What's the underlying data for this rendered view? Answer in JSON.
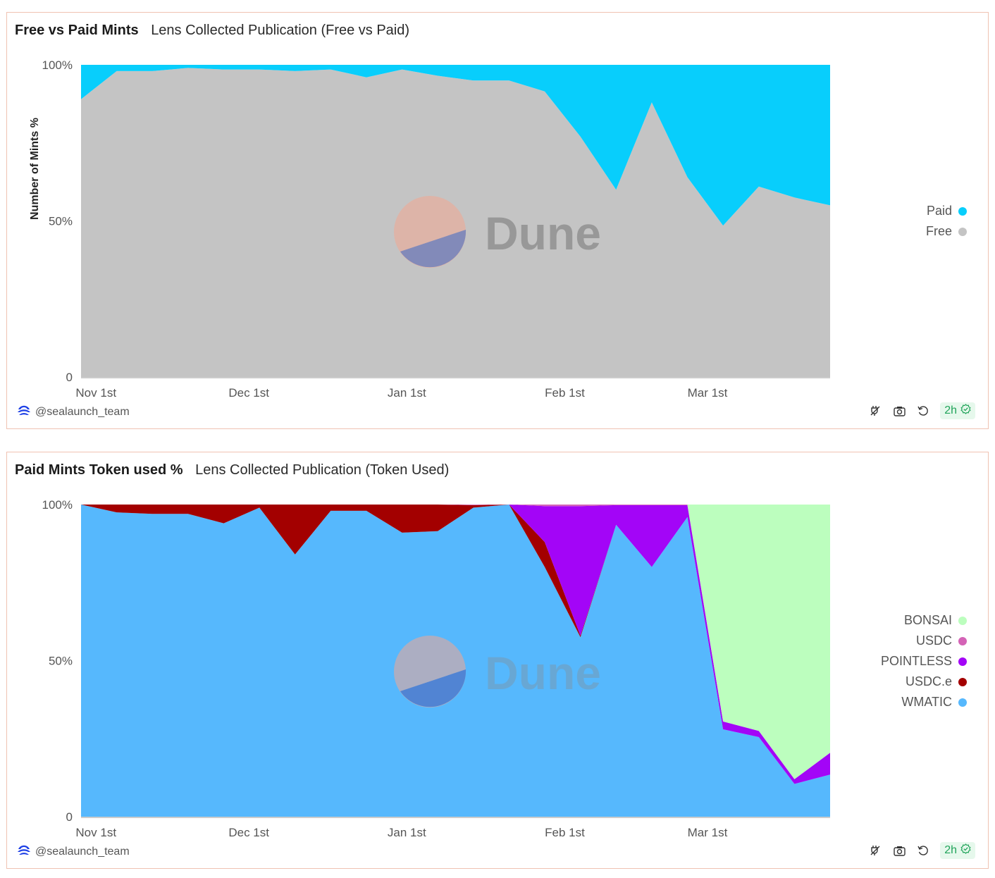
{
  "dashboard": {
    "author": "@sealaunch_team",
    "refresh_badge": "2h"
  },
  "watermark": {
    "text": "Dune"
  },
  "charts": [
    {
      "title": "Free vs Paid Mints",
      "subtitle": "Lens Collected Publication (Free vs Paid)",
      "ylabel": "Number of Mints %",
      "y_ticks": [
        "100%",
        "50%",
        "0"
      ],
      "x_ticks": [
        "Nov 1st",
        "Dec 1st",
        "Jan 1st",
        "Feb 1st",
        "Mar 1st"
      ],
      "legend": [
        {
          "name": "Paid",
          "color": "#08cefc"
        },
        {
          "name": "Free",
          "color": "#c4c4c4"
        }
      ]
    },
    {
      "title": "Paid Mints Token used %",
      "subtitle": "Lens Collected Publication (Token Used)",
      "ylabel": "",
      "y_ticks": [
        "100%",
        "50%",
        "0"
      ],
      "x_ticks": [
        "Nov 1st",
        "Dec 1st",
        "Jan 1st",
        "Feb 1st",
        "Mar 1st"
      ],
      "legend": [
        {
          "name": "BONSAI",
          "color": "#bcfebe"
        },
        {
          "name": "USDC",
          "color": "#d463b6"
        },
        {
          "name": "POINTLESS",
          "color": "#a305f7"
        },
        {
          "name": "USDC.e",
          "color": "#a30000"
        },
        {
          "name": "WMATIC",
          "color": "#56b8fd"
        }
      ]
    }
  ],
  "chart_data": [
    {
      "type": "area",
      "stacked": "percent",
      "x": [
        "2022-10-31",
        "2022-11-07",
        "2022-11-14",
        "2022-11-21",
        "2022-11-28",
        "2022-12-05",
        "2022-12-12",
        "2022-12-19",
        "2022-12-26",
        "2023-01-02",
        "2023-01-09",
        "2023-01-16",
        "2023-01-23",
        "2023-01-30",
        "2023-02-06",
        "2023-02-13",
        "2023-02-20",
        "2023-02-27",
        "2023-03-06",
        "2023-03-13",
        "2023-03-20",
        "2023-03-27"
      ],
      "x_range": [
        "2022-10-31",
        "2023-03-27"
      ],
      "ylim": [
        0,
        100
      ],
      "grid": false,
      "legend_position": "right",
      "series": [
        {
          "name": "Free",
          "color": "#c4c4c4",
          "values": [
            89,
            98,
            98,
            99,
            98.5,
            98.5,
            98,
            98.5,
            96,
            98.5,
            96.5,
            95,
            95,
            91.5,
            77,
            60,
            88,
            64,
            48.5,
            61,
            57.5,
            55
          ]
        },
        {
          "name": "Paid",
          "color": "#08cefc",
          "values": [
            11,
            2,
            2,
            1,
            1.5,
            1.5,
            2,
            1.5,
            4,
            1.5,
            3.5,
            5,
            5,
            8.5,
            23,
            40,
            12,
            36,
            51.5,
            39,
            42.5,
            45
          ]
        }
      ]
    },
    {
      "type": "area",
      "stacked": "percent",
      "x": [
        "2022-10-31",
        "2022-11-07",
        "2022-11-14",
        "2022-11-21",
        "2022-11-28",
        "2022-12-05",
        "2022-12-12",
        "2022-12-19",
        "2022-12-26",
        "2023-01-02",
        "2023-01-09",
        "2023-01-16",
        "2023-01-23",
        "2023-01-30",
        "2023-02-06",
        "2023-02-13",
        "2023-02-20",
        "2023-02-27",
        "2023-03-06",
        "2023-03-13",
        "2023-03-20",
        "2023-03-27"
      ],
      "x_range": [
        "2022-10-31",
        "2023-03-27"
      ],
      "ylim": [
        0,
        100
      ],
      "grid": false,
      "legend_position": "right",
      "series": [
        {
          "name": "WMATIC",
          "color": "#56b8fd",
          "values": [
            100,
            97.5,
            97,
            97,
            94,
            99,
            84,
            98,
            98,
            91,
            91.5,
            99,
            100,
            80,
            57.5,
            93.5,
            80,
            96,
            28,
            25.5,
            10.5,
            13.5
          ]
        },
        {
          "name": "USDC.e",
          "color": "#a30000",
          "values": [
            0,
            2.5,
            3,
            3,
            6,
            1,
            16,
            2,
            2,
            9,
            8.5,
            0.8,
            0,
            8,
            0.5,
            0,
            0,
            0,
            0,
            0,
            0,
            0
          ]
        },
        {
          "name": "POINTLESS",
          "color": "#a305f7",
          "values": [
            0,
            0,
            0,
            0,
            0,
            0,
            0,
            0,
            0,
            0,
            0,
            0,
            0,
            11.5,
            41.5,
            6.3,
            19.8,
            3.8,
            2.5,
            2,
            1.5,
            7
          ]
        },
        {
          "name": "USDC",
          "color": "#d463b6",
          "values": [
            0,
            0,
            0,
            0,
            0,
            0,
            0,
            0,
            0,
            0,
            0,
            0.2,
            0,
            0.5,
            0.5,
            0.2,
            0.2,
            0.2,
            0,
            0,
            0,
            0
          ]
        },
        {
          "name": "BONSAI",
          "color": "#bcfebe",
          "values": [
            0,
            0,
            0,
            0,
            0,
            0,
            0,
            0,
            0,
            0,
            0,
            0,
            0,
            0,
            0,
            0,
            0,
            0,
            69.5,
            72.5,
            88,
            79.5
          ]
        }
      ]
    }
  ]
}
